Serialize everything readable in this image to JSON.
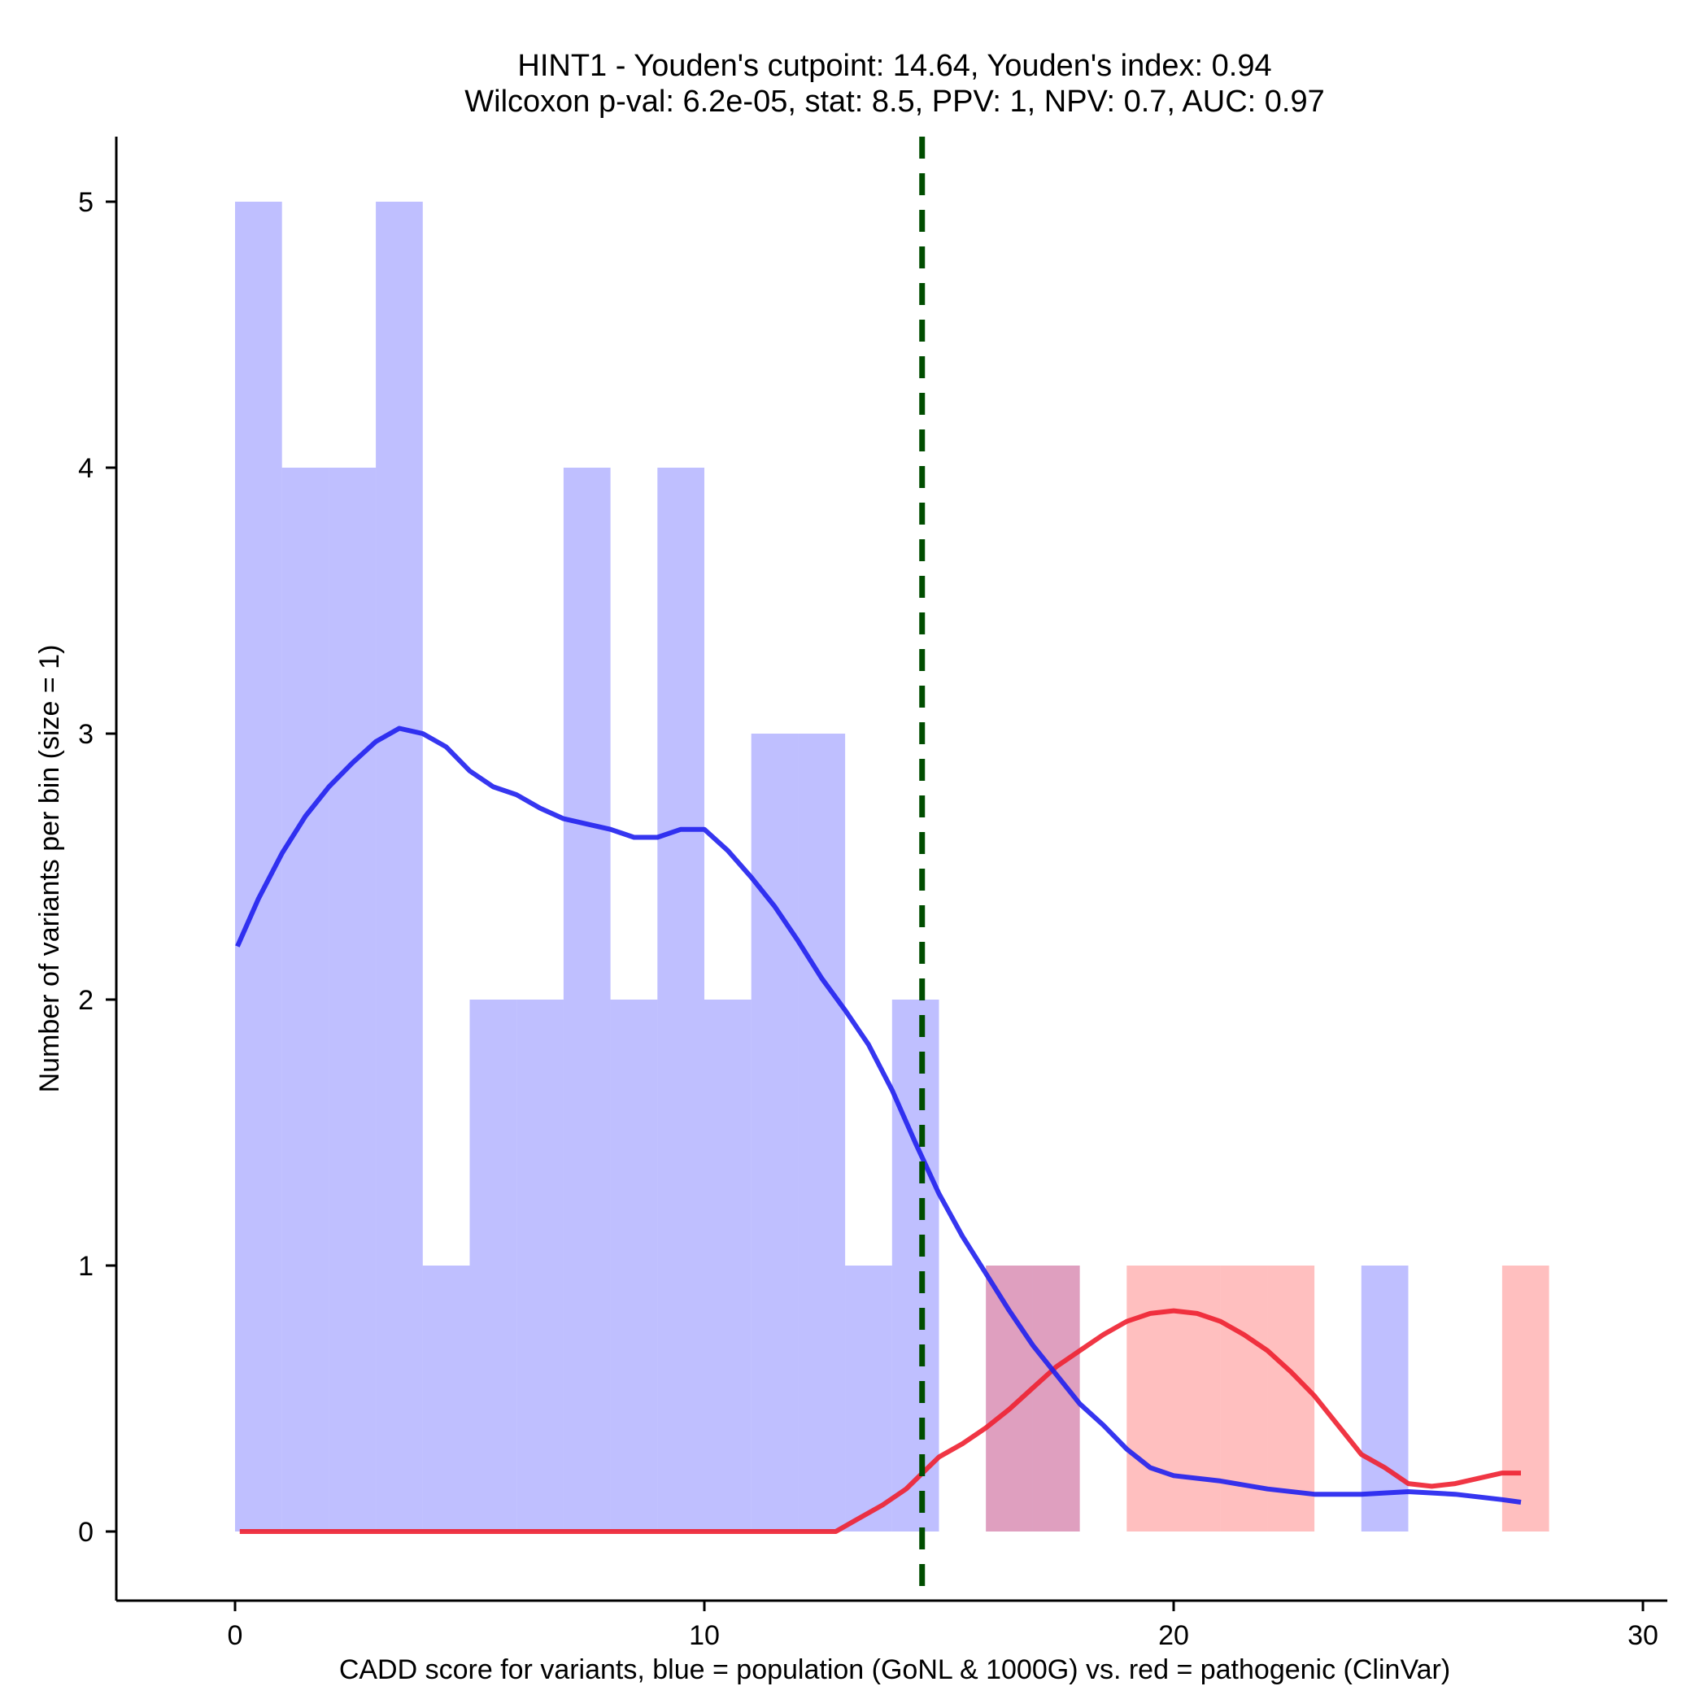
{
  "chart_data": {
    "type": "bar",
    "title": "HINT1 - Youden's cutpoint: 14.64, Youden's index: 0.94",
    "subtitle": "Wilcoxon p-val: 6.2e-05, stat: 8.5, PPV: 1, NPV: 0.7, AUC: 0.97",
    "xlabel": "CADD score for variants, blue = population (GoNL & 1000G) vs. red = pathogenic (ClinVar)",
    "ylabel": "Number of variants per bin (size = 1)",
    "xlim": [
      -2.5,
      30.5
    ],
    "ylim": [
      -0.25,
      5.25
    ],
    "x_ticks": [
      0,
      10,
      20,
      30
    ],
    "y_ticks": [
      0,
      1,
      2,
      3,
      4,
      5
    ],
    "bin_width": 1,
    "cutpoint": 14.64,
    "grid": false,
    "series": [
      {
        "name": "population (GoNL & 1000G)",
        "color": "#8080ff",
        "opacity": 0.5,
        "bins": [
          {
            "x": 0,
            "count": 5
          },
          {
            "x": 1,
            "count": 4
          },
          {
            "x": 2,
            "count": 4
          },
          {
            "x": 3,
            "count": 5
          },
          {
            "x": 4,
            "count": 1
          },
          {
            "x": 5,
            "count": 2
          },
          {
            "x": 6,
            "count": 2
          },
          {
            "x": 7,
            "count": 4
          },
          {
            "x": 8,
            "count": 2
          },
          {
            "x": 9,
            "count": 4
          },
          {
            "x": 10,
            "count": 2
          },
          {
            "x": 11,
            "count": 3
          },
          {
            "x": 12,
            "count": 3
          },
          {
            "x": 13,
            "count": 1
          },
          {
            "x": 14,
            "count": 2
          },
          {
            "x": 16,
            "count": 1
          },
          {
            "x": 17,
            "count": 1
          },
          {
            "x": 24,
            "count": 1
          }
        ],
        "density_color": "#2020ee",
        "density": [
          [
            0.05,
            2.2
          ],
          [
            0.5,
            2.38
          ],
          [
            1.0,
            2.55
          ],
          [
            1.5,
            2.69
          ],
          [
            2.0,
            2.8
          ],
          [
            2.5,
            2.89
          ],
          [
            3.0,
            2.97
          ],
          [
            3.5,
            3.02
          ],
          [
            4.0,
            3.0
          ],
          [
            4.5,
            2.95
          ],
          [
            5.0,
            2.86
          ],
          [
            5.5,
            2.8
          ],
          [
            6.0,
            2.77
          ],
          [
            6.5,
            2.72
          ],
          [
            7.0,
            2.68
          ],
          [
            7.5,
            2.66
          ],
          [
            8.0,
            2.64
          ],
          [
            8.5,
            2.61
          ],
          [
            9.0,
            2.61
          ],
          [
            9.5,
            2.64
          ],
          [
            10.0,
            2.64
          ],
          [
            10.5,
            2.56
          ],
          [
            11.0,
            2.46
          ],
          [
            11.5,
            2.35
          ],
          [
            12.0,
            2.22
          ],
          [
            12.5,
            2.08
          ],
          [
            13.0,
            1.96
          ],
          [
            13.5,
            1.83
          ],
          [
            14.0,
            1.66
          ],
          [
            14.5,
            1.46
          ],
          [
            15.0,
            1.27
          ],
          [
            15.5,
            1.11
          ],
          [
            16.0,
            0.97
          ],
          [
            16.5,
            0.83
          ],
          [
            17.0,
            0.7
          ],
          [
            17.5,
            0.59
          ],
          [
            18.0,
            0.48
          ],
          [
            18.5,
            0.4
          ],
          [
            19.0,
            0.31
          ],
          [
            19.5,
            0.24
          ],
          [
            20.0,
            0.21
          ],
          [
            21.0,
            0.19
          ],
          [
            22.0,
            0.16
          ],
          [
            23.0,
            0.14
          ],
          [
            24.0,
            0.14
          ],
          [
            25.0,
            0.15
          ],
          [
            26.0,
            0.14
          ],
          [
            27.0,
            0.12
          ],
          [
            27.4,
            0.11
          ]
        ]
      },
      {
        "name": "pathogenic (ClinVar)",
        "color": "#ff8080",
        "opacity": 0.5,
        "bins": [
          {
            "x": 16,
            "count": 1
          },
          {
            "x": 17,
            "count": 1
          },
          {
            "x": 19,
            "count": 1
          },
          {
            "x": 20,
            "count": 1
          },
          {
            "x": 21,
            "count": 1
          },
          {
            "x": 22,
            "count": 1
          },
          {
            "x": 27,
            "count": 1
          }
        ],
        "density_color": "#ee2030",
        "density": [
          [
            0.1,
            0.0
          ],
          [
            4.0,
            0.0
          ],
          [
            8.0,
            0.0
          ],
          [
            12.0,
            0.0
          ],
          [
            12.8,
            0.0
          ],
          [
            13.2,
            0.04
          ],
          [
            13.8,
            0.1
          ],
          [
            14.3,
            0.16
          ],
          [
            15.0,
            0.28
          ],
          [
            15.5,
            0.33
          ],
          [
            16.0,
            0.39
          ],
          [
            16.5,
            0.46
          ],
          [
            17.0,
            0.54
          ],
          [
            17.5,
            0.62
          ],
          [
            18.0,
            0.68
          ],
          [
            18.5,
            0.74
          ],
          [
            19.0,
            0.79
          ],
          [
            19.5,
            0.82
          ],
          [
            20.0,
            0.83
          ],
          [
            20.5,
            0.82
          ],
          [
            21.0,
            0.79
          ],
          [
            21.5,
            0.74
          ],
          [
            22.0,
            0.68
          ],
          [
            22.5,
            0.6
          ],
          [
            23.0,
            0.51
          ],
          [
            23.5,
            0.4
          ],
          [
            24.0,
            0.29
          ],
          [
            24.5,
            0.24
          ],
          [
            25.0,
            0.18
          ],
          [
            25.5,
            0.17
          ],
          [
            26.0,
            0.18
          ],
          [
            26.5,
            0.2
          ],
          [
            27.0,
            0.22
          ],
          [
            27.4,
            0.22
          ]
        ]
      }
    ],
    "cutpoint_color": "#004d00"
  }
}
